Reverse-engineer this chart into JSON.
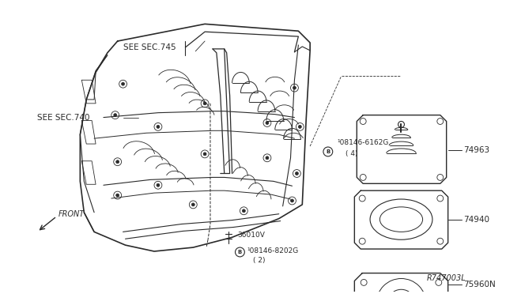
{
  "bg_color": "#ffffff",
  "line_color": "#2a2a2a",
  "text_color": "#2a2a2a",
  "fig_width": 6.4,
  "fig_height": 3.72,
  "labels": {
    "see_sec_745": "SEE SEC.745",
    "see_sec_740": "SEE SEC.740",
    "part_08146_6162G_line1": "¹08146-6162G",
    "part_08146_6162G_line2": "( 4)",
    "part_36010V": "36010V",
    "part_08146_8202G_line1": "¹08146-8202G",
    "part_08146_8202G_line2": "( 2)",
    "part_74963": "74963",
    "part_74940": "74940",
    "part_75960N": "75960N",
    "ref_code": "R747003L",
    "front_label": "FRONT"
  }
}
